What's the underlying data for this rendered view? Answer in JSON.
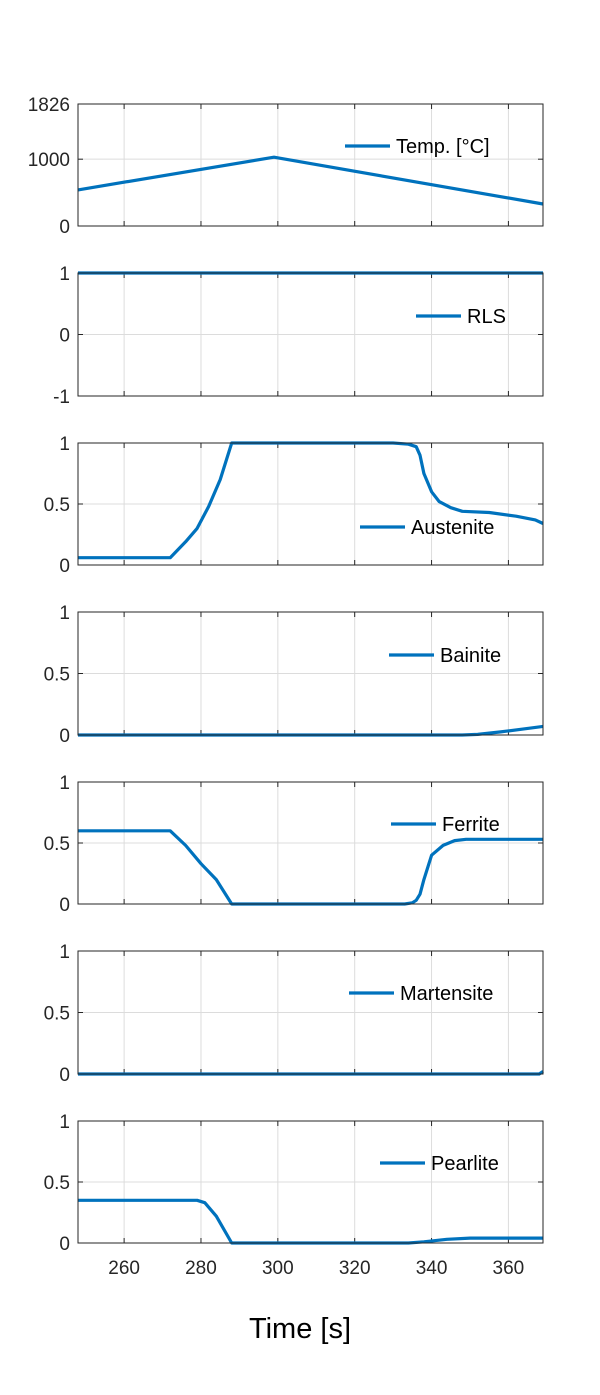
{
  "figure": {
    "xlabel": "Time [s]",
    "line_color": "#0072BD",
    "grid_color": "#dcdcdc",
    "axis_color": "#262626"
  },
  "chart_data": [
    {
      "type": "line",
      "legend": "Temp. [°C]",
      "xlim": [
        248,
        369
      ],
      "ylim": [
        0,
        1826
      ],
      "yticks": [
        0,
        1000,
        1826
      ],
      "ytick_labels": [
        "0",
        "1000",
        "1826"
      ],
      "xticks": [
        260,
        280,
        300,
        320,
        340,
        360
      ],
      "xtick_labels": [],
      "grid": true,
      "x": [
        248,
        299,
        369
      ],
      "y": [
        540,
        1030,
        330
      ]
    },
    {
      "type": "line",
      "legend": "RLS",
      "xlim": [
        248,
        369
      ],
      "ylim": [
        -1,
        1
      ],
      "yticks": [
        -1,
        0,
        1
      ],
      "ytick_labels": [
        "-1",
        "0",
        "1"
      ],
      "xticks": [
        260,
        280,
        300,
        320,
        340,
        360
      ],
      "xtick_labels": [],
      "grid": true,
      "x": [
        248,
        369
      ],
      "y": [
        1,
        1
      ]
    },
    {
      "type": "line",
      "legend": "Austenite",
      "xlim": [
        248,
        369
      ],
      "ylim": [
        0,
        1
      ],
      "yticks": [
        0,
        0.5,
        1
      ],
      "ytick_labels": [
        "0",
        "0.5",
        "1"
      ],
      "xticks": [
        260,
        280,
        300,
        320,
        340,
        360
      ],
      "xtick_labels": [],
      "grid": true,
      "x": [
        248,
        272,
        276,
        279,
        282,
        285,
        288,
        330,
        334,
        336,
        337,
        338,
        340,
        342,
        345,
        348,
        355,
        362,
        367,
        369
      ],
      "y": [
        0.06,
        0.06,
        0.19,
        0.3,
        0.48,
        0.7,
        1.0,
        1.0,
        0.99,
        0.97,
        0.9,
        0.75,
        0.6,
        0.52,
        0.47,
        0.44,
        0.43,
        0.4,
        0.37,
        0.34
      ]
    },
    {
      "type": "line",
      "legend": "Bainite",
      "xlim": [
        248,
        369
      ],
      "ylim": [
        0,
        1
      ],
      "yticks": [
        0,
        0.5,
        1
      ],
      "ytick_labels": [
        "0",
        "0.5",
        "1"
      ],
      "xticks": [
        260,
        280,
        300,
        320,
        340,
        360
      ],
      "xtick_labels": [],
      "grid": true,
      "x": [
        248,
        348,
        352,
        358,
        364,
        369
      ],
      "y": [
        0,
        0,
        0.005,
        0.025,
        0.05,
        0.07
      ]
    },
    {
      "type": "line",
      "legend": "Ferrite",
      "xlim": [
        248,
        369
      ],
      "ylim": [
        0,
        1
      ],
      "yticks": [
        0,
        0.5,
        1
      ],
      "ytick_labels": [
        "0",
        "0.5",
        "1"
      ],
      "xticks": [
        260,
        280,
        300,
        320,
        340,
        360
      ],
      "xtick_labels": [],
      "grid": true,
      "x": [
        248,
        272,
        276,
        280,
        284,
        288,
        333,
        335,
        336,
        337,
        338,
        340,
        343,
        346,
        349,
        369
      ],
      "y": [
        0.6,
        0.6,
        0.48,
        0.33,
        0.2,
        0.0,
        0.0,
        0.01,
        0.03,
        0.08,
        0.2,
        0.4,
        0.48,
        0.52,
        0.53,
        0.53
      ]
    },
    {
      "type": "line",
      "legend": "Martensite",
      "xlim": [
        248,
        369
      ],
      "ylim": [
        0,
        1
      ],
      "yticks": [
        0,
        0.5,
        1
      ],
      "ytick_labels": [
        "0",
        "0.5",
        "1"
      ],
      "xticks": [
        260,
        280,
        300,
        320,
        340,
        360
      ],
      "xtick_labels": [],
      "grid": true,
      "x": [
        248,
        368,
        369
      ],
      "y": [
        0,
        0,
        0.02
      ]
    },
    {
      "type": "line",
      "legend": "Pearlite",
      "xlim": [
        248,
        369
      ],
      "ylim": [
        0,
        1
      ],
      "yticks": [
        0,
        0.5,
        1
      ],
      "ytick_labels": [
        "0",
        "0.5",
        "1"
      ],
      "xticks": [
        260,
        280,
        300,
        320,
        340,
        360
      ],
      "xtick_labels": [
        "260",
        "280",
        "300",
        "320",
        "340",
        "360"
      ],
      "grid": true,
      "x": [
        248,
        279,
        281,
        284,
        288,
        334,
        338,
        344,
        350,
        369
      ],
      "y": [
        0.35,
        0.35,
        0.33,
        0.22,
        0.0,
        0.0,
        0.01,
        0.03,
        0.04,
        0.04
      ]
    }
  ]
}
